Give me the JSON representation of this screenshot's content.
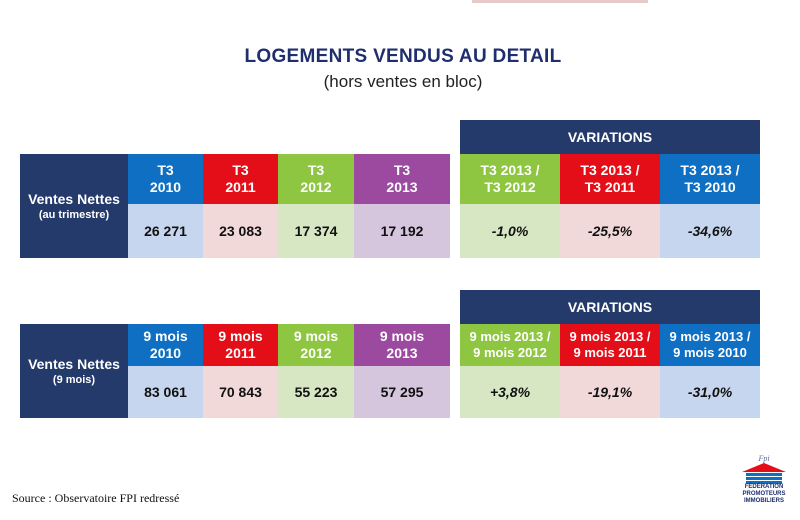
{
  "title": "LOGEMENTS VENDUS AU DETAIL",
  "subtitle": "(hors ventes en bloc)",
  "variations_label": "VARIATIONS",
  "table1": {
    "label_main": "Ventes Nettes",
    "label_sub": "(au trimestre)",
    "headers": [
      {
        "line1": "T3",
        "line2": "2010",
        "color": "#0f6fc2"
      },
      {
        "line1": "T3",
        "line2": "2011",
        "color": "#e30e17"
      },
      {
        "line1": "T3",
        "line2": "2012",
        "color": "#8ec641"
      },
      {
        "line1": "T3",
        "line2": "2013",
        "color": "#9b4a9f"
      }
    ],
    "values": [
      {
        "v": "26 271",
        "bg": "#c6d6ee"
      },
      {
        "v": "23 083",
        "bg": "#f2d9d9"
      },
      {
        "v": "17 374",
        "bg": "#d7e6c3"
      },
      {
        "v": "17 192",
        "bg": "#d5c6de"
      }
    ],
    "var_headers": [
      {
        "line1": "T3 2013 /",
        "line2": "T3 2012",
        "color": "#8ec641"
      },
      {
        "line1": "T3 2013 /",
        "line2": "T3 2011",
        "color": "#e30e17"
      },
      {
        "line1": "T3 2013 /",
        "line2": "T3 2010",
        "color": "#0f6fc2"
      }
    ],
    "var_values": [
      {
        "v": "-1,0%",
        "bg": "#d7e6c3"
      },
      {
        "v": "-25,5%",
        "bg": "#f2d9d9"
      },
      {
        "v": "-34,6%",
        "bg": "#c6d6ee"
      }
    ]
  },
  "table2": {
    "label_main": "Ventes Nettes",
    "label_sub": "(9 mois)",
    "headers": [
      {
        "line1": "9 mois",
        "line2": "2010",
        "color": "#0f6fc2"
      },
      {
        "line1": "9 mois",
        "line2": "2011",
        "color": "#e30e17"
      },
      {
        "line1": "9 mois",
        "line2": "2012",
        "color": "#8ec641"
      },
      {
        "line1": "9 mois",
        "line2": "2013",
        "color": "#9b4a9f"
      }
    ],
    "values": [
      {
        "v": "83 061",
        "bg": "#c6d6ee"
      },
      {
        "v": "70 843",
        "bg": "#f2d9d9"
      },
      {
        "v": "55 223",
        "bg": "#d7e6c3"
      },
      {
        "v": "57 295",
        "bg": "#d5c6de"
      }
    ],
    "var_headers": [
      {
        "line1": "9 mois 2013 /",
        "line2": "9 mois 2012",
        "color": "#8ec641"
      },
      {
        "line1": "9 mois 2013 /",
        "line2": "9 mois 2011",
        "color": "#e30e17"
      },
      {
        "line1": "9 mois 2013 /",
        "line2": "9 mois 2010",
        "color": "#0f6fc2"
      }
    ],
    "var_values": [
      {
        "v": "+3,8%",
        "bg": "#d7e6c3"
      },
      {
        "v": "-19,1%",
        "bg": "#f2d9d9"
      },
      {
        "v": "-31,0%",
        "bg": "#c6d6ee"
      }
    ]
  },
  "source": "Source : Observatoire FPI redressé",
  "logo": {
    "script": "Fpi",
    "line1": "FÉDÉRATION",
    "line2": "PROMOTEURS",
    "line3": "IMMOBILIERS"
  }
}
